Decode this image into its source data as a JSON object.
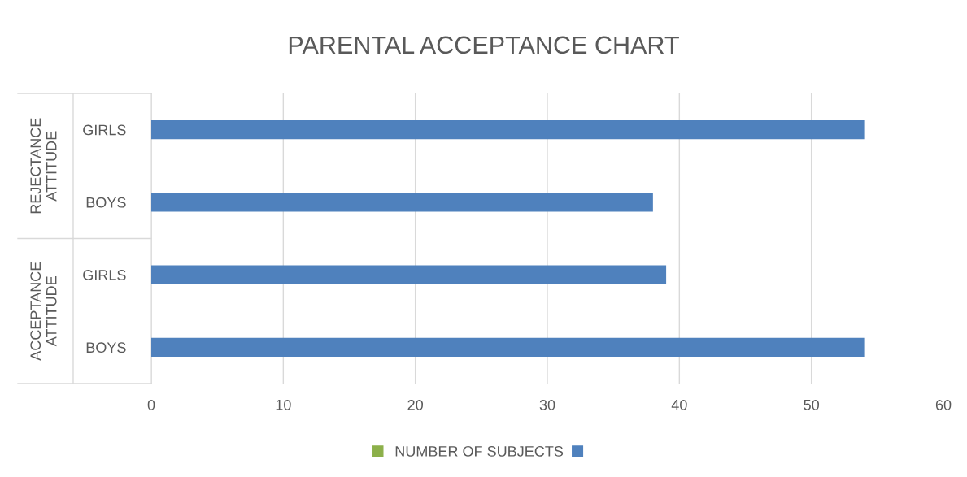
{
  "chart_data": {
    "type": "bar",
    "orientation": "horizontal",
    "title": "PARENTAL ACCEPTANCE CHART",
    "categories": [
      "GIRLS",
      "BOYS",
      "GIRLS",
      "BOYS"
    ],
    "annotations": [
      "REJECTANCE\nATTITUDE",
      "ACCEPTANCE\nATTITUDE"
    ],
    "series": [
      {
        "name": "NUMBER OF SUBJECTS",
        "color": "#8cb04a",
        "values": [
          null,
          null,
          null,
          null
        ]
      },
      {
        "color": "#4f81bd",
        "values": [
          54,
          38,
          39,
          54
        ]
      }
    ],
    "xlim": [
      0,
      60
    ],
    "xticks": [
      0,
      10,
      20,
      30,
      40,
      50,
      60
    ],
    "grid": "x",
    "legend": "bottom"
  }
}
